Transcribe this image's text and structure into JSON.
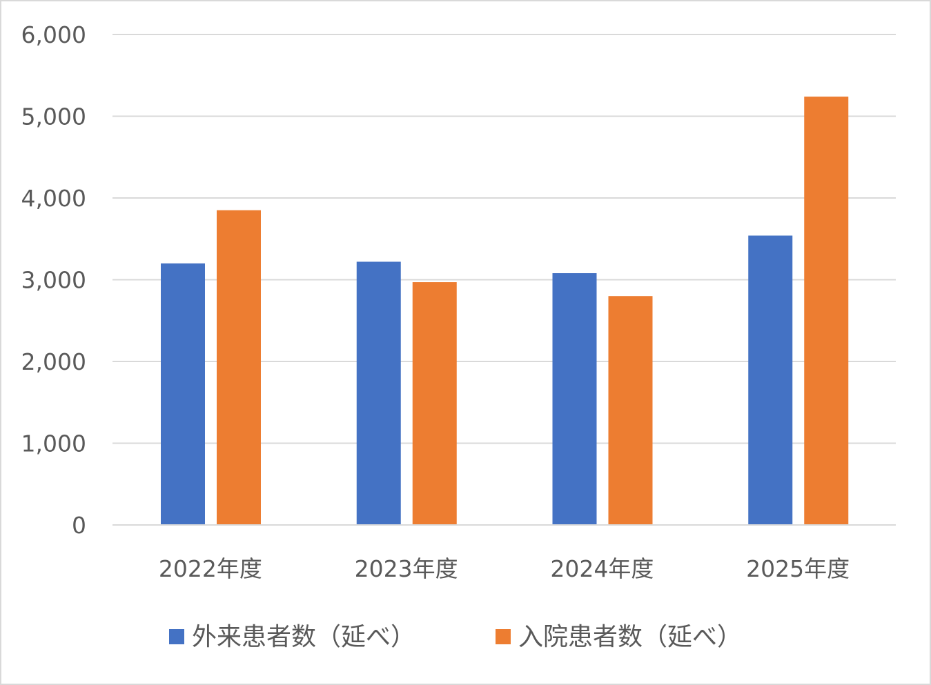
{
  "chart_data": {
    "type": "bar",
    "title": "",
    "xlabel": "",
    "ylabel": "",
    "categories": [
      "2022年度",
      "2023年度",
      "2024年度",
      "2025年度"
    ],
    "series": [
      {
        "name": "外来患者数（延べ）",
        "color": "#4472c4",
        "values": [
          3200,
          3220,
          3080,
          3540
        ]
      },
      {
        "name": "入院患者数（延べ）",
        "color": "#ed7d31",
        "values": [
          3850,
          2970,
          2800,
          5240
        ]
      }
    ],
    "ylim": [
      0,
      6000
    ],
    "yticks": [
      0,
      1000,
      2000,
      3000,
      4000,
      5000,
      6000
    ],
    "ytick_labels": [
      "0",
      "1,000",
      "2,000",
      "3,000",
      "4,000",
      "5,000",
      "6,000"
    ],
    "grid": true,
    "gridline_color": "#d9d9d9",
    "legend_position": "bottom"
  }
}
